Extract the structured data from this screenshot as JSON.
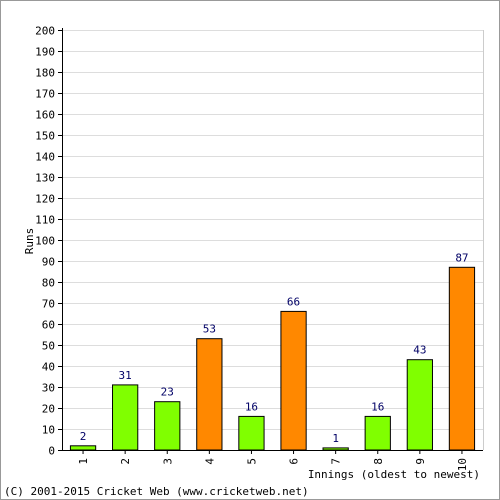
{
  "chart_data": {
    "type": "bar",
    "xlabel": "Innings (oldest to newest)",
    "ylabel": "Runs",
    "ylim": [
      0,
      200
    ],
    "ytick_step": 10,
    "grid": true,
    "categories": [
      "1",
      "2",
      "3",
      "4",
      "5",
      "6",
      "7",
      "8",
      "9",
      "10"
    ],
    "values": [
      2,
      31,
      23,
      53,
      16,
      66,
      1,
      16,
      43,
      87
    ],
    "bar_colors": [
      "#80ff00",
      "#80ff00",
      "#80ff00",
      "#ff8800",
      "#80ff00",
      "#ff8800",
      "#80ff00",
      "#80ff00",
      "#80ff00",
      "#ff8800"
    ]
  },
  "footer": {
    "copyright": "(C) 2001-2015 Cricket Web (www.cricketweb.net)"
  }
}
